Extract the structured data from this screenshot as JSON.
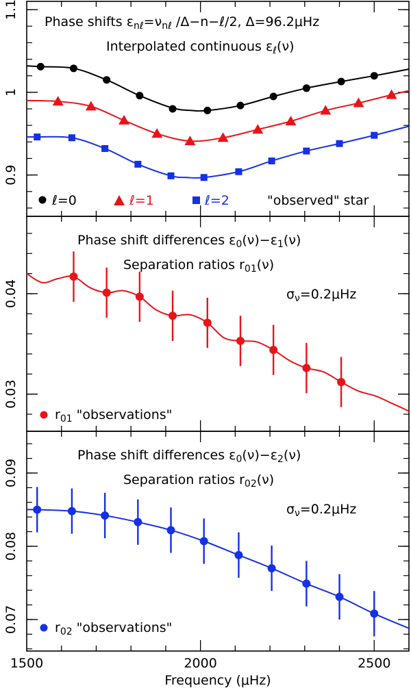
{
  "chart_data": [
    {
      "type": "scatter",
      "panel": "top",
      "annotations": {
        "line1": "Phase shifts ε",
        "line1_sub_nl": "nℓ",
        "line1_eq": "=ν",
        "line1_sub_nl2": "nℓ",
        "line1_rest": " /Δ−n−ℓ/2,  Δ=96.2μHz",
        "line2": "Interpolated continuous ε",
        "line2_sub": "ℓ",
        "line2_arg": "(ν)"
      },
      "ylim": [
        0.85,
        1.11
      ],
      "yticks": [
        0.9,
        1,
        1.1
      ],
      "ytick_labels": [
        "0.9",
        "1",
        "1.1"
      ],
      "legend": {
        "l0": "ℓ=0",
        "l1": "ℓ=1",
        "l2": "ℓ=2",
        "caption": "\"observed\" star",
        "position": "bottom"
      },
      "series": [
        {
          "name": "ℓ=0",
          "color": "#000000",
          "marker": "circle",
          "x": [
            1540,
            1635,
            1730,
            1825,
            1920,
            2020,
            2115,
            2210,
            2305,
            2405,
            2500
          ],
          "y": [
            1.031,
            1.029,
            1.015,
            0.996,
            0.98,
            0.978,
            0.984,
            0.995,
            1.005,
            1.013,
            1.02
          ],
          "curve_x": [
            1500,
            1540,
            1635,
            1730,
            1825,
            1920,
            1975,
            2020,
            2115,
            2210,
            2305,
            2405,
            2500,
            2600
          ],
          "curve_y": [
            1.032,
            1.031,
            1.029,
            1.015,
            0.996,
            0.981,
            0.978,
            0.978,
            0.984,
            0.995,
            1.005,
            1.013,
            1.02,
            1.028
          ]
        },
        {
          "name": "ℓ=1",
          "color": "#e8141a",
          "marker": "triangle",
          "x": [
            1590,
            1685,
            1780,
            1875,
            1970,
            2065,
            2165,
            2260,
            2360,
            2455,
            2550
          ],
          "y": [
            0.989,
            0.983,
            0.966,
            0.95,
            0.941,
            0.945,
            0.955,
            0.965,
            0.978,
            0.987,
            0.997
          ],
          "curve_x": [
            1500,
            1590,
            1685,
            1780,
            1875,
            1970,
            2065,
            2165,
            2260,
            2360,
            2455,
            2550,
            2600
          ],
          "curve_y": [
            0.99,
            0.989,
            0.983,
            0.966,
            0.95,
            0.941,
            0.945,
            0.955,
            0.965,
            0.978,
            0.987,
            0.997,
            1.002
          ]
        },
        {
          "name": "ℓ=2",
          "color": "#1530e6",
          "marker": "square",
          "x": [
            1530,
            1630,
            1725,
            1820,
            1915,
            2010,
            2110,
            2205,
            2305,
            2400,
            2500
          ],
          "y": [
            0.946,
            0.945,
            0.932,
            0.913,
            0.899,
            0.897,
            0.904,
            0.917,
            0.929,
            0.938,
            0.948
          ],
          "curve_x": [
            1500,
            1530,
            1630,
            1725,
            1820,
            1915,
            1960,
            2010,
            2110,
            2205,
            2305,
            2400,
            2500,
            2600
          ],
          "curve_y": [
            0.946,
            0.946,
            0.945,
            0.932,
            0.913,
            0.899,
            0.897,
            0.897,
            0.904,
            0.917,
            0.929,
            0.938,
            0.948,
            0.959
          ]
        }
      ]
    },
    {
      "type": "scatter",
      "panel": "middle",
      "annotations": {
        "line1": "Phase shift differences ε",
        "line1_sub_a": "0",
        "line1_mid": "(ν)−ε",
        "line1_sub_b": "1",
        "line1_end": "(ν)",
        "line2": "Separation ratios r",
        "line2_sub": "01",
        "line2_arg": "(ν)",
        "sigma": "σ",
        "sigma_sub": "ν",
        "sigma_val": "=0.2μHz"
      },
      "ylim": [
        0.0263,
        0.0477
      ],
      "yticks": [
        0.03,
        0.04
      ],
      "ytick_labels": [
        "0.03",
        "0.04"
      ],
      "legend": {
        "symbol": "r",
        "sub": "01",
        "text": " \"observations\"",
        "position": "bottom-left"
      },
      "series": [
        {
          "name": "r01",
          "color": "#e8141a",
          "marker": "circle",
          "x": [
            1635,
            1730,
            1825,
            1920,
            2020,
            2115,
            2210,
            2305,
            2405
          ],
          "y": [
            0.0417,
            0.0401,
            0.0397,
            0.0378,
            0.0371,
            0.0353,
            0.0344,
            0.0326,
            0.0312
          ],
          "yerr": 0.0025,
          "curve_x": [
            1500,
            1545,
            1590,
            1635,
            1682,
            1730,
            1778,
            1825,
            1872,
            1920,
            1970,
            2020,
            2068,
            2115,
            2162,
            2210,
            2258,
            2305,
            2355,
            2405,
            2455,
            2505,
            2550,
            2600
          ],
          "curve_y": [
            0.042,
            0.0411,
            0.0415,
            0.0417,
            0.0406,
            0.0401,
            0.0403,
            0.0397,
            0.0384,
            0.0378,
            0.0379,
            0.0371,
            0.0356,
            0.0353,
            0.0352,
            0.0344,
            0.0333,
            0.0326,
            0.0322,
            0.0312,
            0.0303,
            0.0298,
            0.0291,
            0.0283
          ]
        }
      ]
    },
    {
      "type": "scatter",
      "panel": "bottom",
      "annotations": {
        "line1": "Phase shift differences ε",
        "line1_sub_a": "0",
        "line1_mid": "(ν)−ε",
        "line1_sub_b": "2",
        "line1_end": "(ν)",
        "line2": "Separation ratios r",
        "line2_sub": "02",
        "line2_arg": "(ν)",
        "sigma": "σ",
        "sigma_sub": "ν",
        "sigma_val": "=0.2μHz"
      },
      "ylim": [
        0.0657,
        0.0957
      ],
      "yticks": [
        0.07,
        0.08,
        0.09
      ],
      "ytick_labels": [
        "0.07",
        "0.08",
        "0.09"
      ],
      "legend": {
        "symbol": "r",
        "sub": "02",
        "text": " \"observations\"",
        "position": "bottom-left"
      },
      "series": [
        {
          "name": "r02",
          "color": "#1530e6",
          "marker": "circle",
          "x": [
            1530,
            1630,
            1725,
            1820,
            1915,
            2010,
            2110,
            2205,
            2305,
            2400,
            2500
          ],
          "y": [
            0.085,
            0.0848,
            0.0842,
            0.0833,
            0.0822,
            0.0807,
            0.0788,
            0.077,
            0.0749,
            0.0731,
            0.0708
          ],
          "yerr": 0.0031,
          "curve_x": [
            1500,
            1530,
            1630,
            1725,
            1820,
            1915,
            2010,
            2110,
            2205,
            2305,
            2400,
            2500,
            2600
          ],
          "curve_y": [
            0.085,
            0.085,
            0.0848,
            0.0842,
            0.0833,
            0.0822,
            0.0807,
            0.0788,
            0.077,
            0.0749,
            0.0731,
            0.0708,
            0.0688
          ]
        }
      ]
    }
  ],
  "xaxis": {
    "xlim": [
      1500,
      2600
    ],
    "ticks": [
      1500,
      2000,
      2500
    ],
    "tick_labels": [
      "1500",
      "2000",
      "2500"
    ],
    "label": "Frequency (μHz)"
  }
}
